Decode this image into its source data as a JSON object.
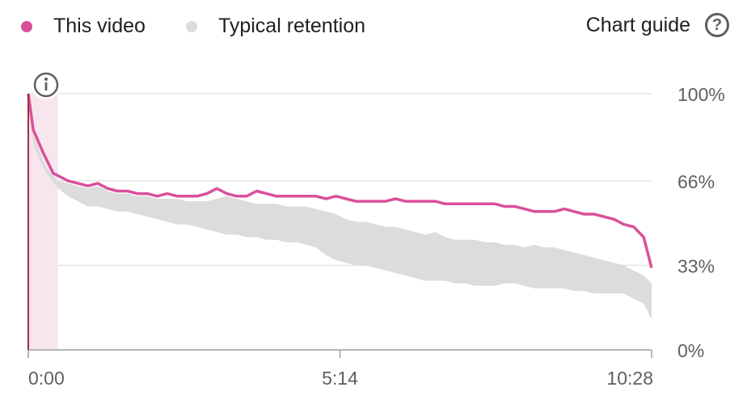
{
  "legend": {
    "this_video": "This video",
    "typical": "Typical retention"
  },
  "guide": {
    "label": "Chart guide",
    "icon": "help-circle-icon"
  },
  "info_icon": "info-icon",
  "colors": {
    "this_video": "#d9509a",
    "typical": "#dcdcdc",
    "highlight": "#f8e6ef",
    "axis": "#a0303a"
  },
  "chart_data": {
    "type": "line",
    "xlabel": "",
    "ylabel": "",
    "x_ticks": [
      "0:00",
      "5:14",
      "10:28"
    ],
    "y_ticks": [
      "100%",
      "66%",
      "33%",
      "0%"
    ],
    "y_tick_values": [
      100,
      66,
      33,
      0
    ],
    "ylim": [
      0,
      100
    ],
    "xlim_seconds": [
      0,
      628
    ],
    "grid": true,
    "legend_position": "top-left",
    "series": [
      {
        "name": "This video",
        "x": [
          0,
          5,
          15,
          20,
          25,
          30,
          40,
          50,
          60,
          70,
          80,
          90,
          100,
          110,
          120,
          130,
          140,
          150,
          160,
          170,
          180,
          190,
          200,
          210,
          220,
          230,
          240,
          250,
          260,
          270,
          280,
          290,
          300,
          310,
          320,
          330,
          340,
          350,
          360,
          370,
          380,
          390,
          400,
          410,
          420,
          430,
          440,
          450,
          460,
          470,
          480,
          490,
          500,
          510,
          520,
          530,
          540,
          550,
          560,
          570,
          580,
          590,
          600,
          610,
          620,
          628
        ],
        "y": [
          100,
          86,
          77,
          73,
          69,
          68,
          66,
          65,
          64,
          65,
          63,
          62,
          62,
          61,
          61,
          60,
          61,
          60,
          60,
          60,
          61,
          63,
          61,
          60,
          60,
          62,
          61,
          60,
          60,
          60,
          60,
          60,
          59,
          60,
          59,
          58,
          58,
          58,
          58,
          59,
          58,
          58,
          58,
          58,
          57,
          57,
          57,
          57,
          57,
          57,
          56,
          56,
          55,
          54,
          54,
          54,
          55,
          54,
          53,
          53,
          52,
          51,
          49,
          48,
          44,
          32
        ]
      },
      {
        "name": "Typical retention",
        "x": [
          0,
          5,
          15,
          20,
          30,
          40,
          50,
          60,
          70,
          80,
          90,
          100,
          110,
          120,
          130,
          140,
          150,
          160,
          170,
          180,
          190,
          200,
          210,
          220,
          230,
          240,
          250,
          260,
          270,
          280,
          290,
          300,
          310,
          320,
          330,
          340,
          350,
          360,
          370,
          380,
          390,
          400,
          410,
          420,
          430,
          440,
          450,
          460,
          470,
          480,
          490,
          500,
          510,
          520,
          530,
          540,
          550,
          560,
          570,
          580,
          590,
          600,
          610,
          620,
          628
        ],
        "upper": [
          100,
          84,
          74,
          70,
          66,
          65,
          64,
          63,
          64,
          62,
          61,
          61,
          60,
          60,
          59,
          59,
          59,
          58,
          58,
          58,
          59,
          60,
          59,
          58,
          57,
          57,
          57,
          56,
          56,
          56,
          55,
          54,
          53,
          51,
          50,
          50,
          49,
          48,
          48,
          47,
          46,
          45,
          46,
          44,
          43,
          43,
          43,
          42,
          42,
          41,
          41,
          40,
          41,
          40,
          40,
          39,
          38,
          37,
          36,
          35,
          34,
          33,
          31,
          29,
          26
        ],
        "lower": [
          100,
          80,
          71,
          68,
          63,
          60,
          58,
          56,
          56,
          55,
          54,
          54,
          53,
          52,
          51,
          50,
          49,
          49,
          48,
          47,
          46,
          45,
          45,
          44,
          44,
          43,
          43,
          42,
          42,
          41,
          40,
          37,
          35,
          34,
          33,
          33,
          32,
          31,
          30,
          29,
          28,
          27,
          27,
          27,
          26,
          26,
          25,
          25,
          25,
          26,
          26,
          25,
          24,
          24,
          24,
          24,
          23,
          23,
          22,
          22,
          22,
          22,
          20,
          18,
          12
        ]
      }
    ]
  }
}
